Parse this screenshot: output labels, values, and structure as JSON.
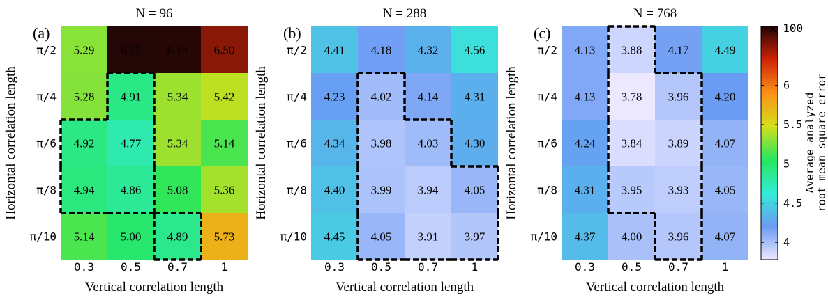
{
  "chart_data": [
    {
      "type": "heatmap",
      "panel_label": "(a)",
      "title": "N = 96",
      "xlabel": "Vertical correlation length",
      "ylabel": "Horizontal correlation length",
      "x_categories": [
        "0.3",
        "0.5",
        "0.7",
        "1"
      ],
      "y_categories": [
        "π/2",
        "π/4",
        "π/6",
        "π/8",
        "π/10"
      ],
      "values": [
        [
          5.29,
          6.75,
          6.74,
          6.5
        ],
        [
          5.28,
          4.91,
          5.34,
          5.42
        ],
        [
          4.92,
          4.77,
          5.34,
          5.14
        ],
        [
          4.94,
          4.86,
          5.08,
          5.36
        ],
        [
          5.14,
          5.0,
          4.89,
          5.73
        ]
      ],
      "value_labels": [
        [
          "5.29",
          "6.75",
          "6.74",
          "6.50"
        ],
        [
          "5.28",
          "4.91",
          "5.34",
          "5.42"
        ],
        [
          "4.92",
          "4.77",
          "5.34",
          "5.14"
        ],
        [
          "4.94",
          "4.86",
          "5.08",
          "5.36"
        ],
        [
          "5.14",
          "5.00",
          "4.89",
          "5.73"
        ]
      ],
      "highlighted_cells": [
        [
          1,
          1
        ],
        [
          2,
          0
        ],
        [
          2,
          1
        ],
        [
          3,
          0
        ],
        [
          3,
          1
        ],
        [
          4,
          2
        ]
      ]
    },
    {
      "type": "heatmap",
      "panel_label": "(b)",
      "title": "N = 288",
      "xlabel": "Vertical correlation length",
      "ylabel": "Horizontal correlation length",
      "x_categories": [
        "0.3",
        "0.5",
        "0.7",
        "1"
      ],
      "y_categories": [
        "π/2",
        "π/4",
        "π/6",
        "π/8",
        "π/10"
      ],
      "values": [
        [
          4.41,
          4.18,
          4.32,
          4.56
        ],
        [
          4.23,
          4.02,
          4.14,
          4.31
        ],
        [
          4.34,
          3.98,
          4.03,
          4.3
        ],
        [
          4.4,
          3.99,
          3.94,
          4.05
        ],
        [
          4.45,
          4.05,
          3.91,
          3.97
        ]
      ],
      "value_labels": [
        [
          "4.41",
          "4.18",
          "4.32",
          "4.56"
        ],
        [
          "4.23",
          "4.02",
          "4.14",
          "4.31"
        ],
        [
          "4.34",
          "3.98",
          "4.03",
          "4.30"
        ],
        [
          "4.40",
          "3.99",
          "3.94",
          "4.05"
        ],
        [
          "4.45",
          "4.05",
          "3.91",
          "3.97"
        ]
      ],
      "highlighted_cells": [
        [
          1,
          1
        ],
        [
          2,
          1
        ],
        [
          2,
          2
        ],
        [
          3,
          1
        ],
        [
          3,
          2
        ],
        [
          3,
          3
        ],
        [
          4,
          1
        ],
        [
          4,
          2
        ],
        [
          4,
          3
        ]
      ]
    },
    {
      "type": "heatmap",
      "panel_label": "(c)",
      "title": "N = 768",
      "xlabel": "Vertical correlation length",
      "ylabel": "Horizontal correlation length",
      "x_categories": [
        "0.3",
        "0.5",
        "0.7",
        "1"
      ],
      "y_categories": [
        "π/2",
        "π/4",
        "π/6",
        "π/8",
        "π/10"
      ],
      "values": [
        [
          4.13,
          3.88,
          4.17,
          4.49
        ],
        [
          4.13,
          3.78,
          3.96,
          4.2
        ],
        [
          4.24,
          3.84,
          3.89,
          4.07
        ],
        [
          4.31,
          3.95,
          3.93,
          4.05
        ],
        [
          4.37,
          4.0,
          3.96,
          4.07
        ]
      ],
      "value_labels": [
        [
          "4.13",
          "3.88",
          "4.17",
          "4.49"
        ],
        [
          "4.13",
          "3.78",
          "3.96",
          "4.20"
        ],
        [
          "4.24",
          "3.84",
          "3.89",
          "4.07"
        ],
        [
          "4.31",
          "3.95",
          "3.93",
          "4.05"
        ],
        [
          "4.37",
          "4.00",
          "3.96",
          "4.07"
        ]
      ],
      "highlighted_cells": [
        [
          0,
          1
        ],
        [
          1,
          1
        ],
        [
          1,
          2
        ],
        [
          2,
          1
        ],
        [
          2,
          2
        ],
        [
          3,
          1
        ],
        [
          3,
          2
        ],
        [
          4,
          2
        ]
      ]
    }
  ],
  "colorbar": {
    "label_line1": "Average analyzed",
    "label_line2": "root mean square error",
    "multiplier": "x 100",
    "ticks": [
      "4",
      "4.5",
      "5",
      "5.5",
      "6"
    ],
    "tick_values": [
      4,
      4.5,
      5,
      5.5,
      6
    ],
    "range": [
      3.78,
      6.75
    ],
    "colormap": [
      "#ece8ff",
      "#6a9bf4",
      "#33ecd6",
      "#27e65e",
      "#d4df1a",
      "#fc9116",
      "#d02406",
      "#230606"
    ]
  }
}
